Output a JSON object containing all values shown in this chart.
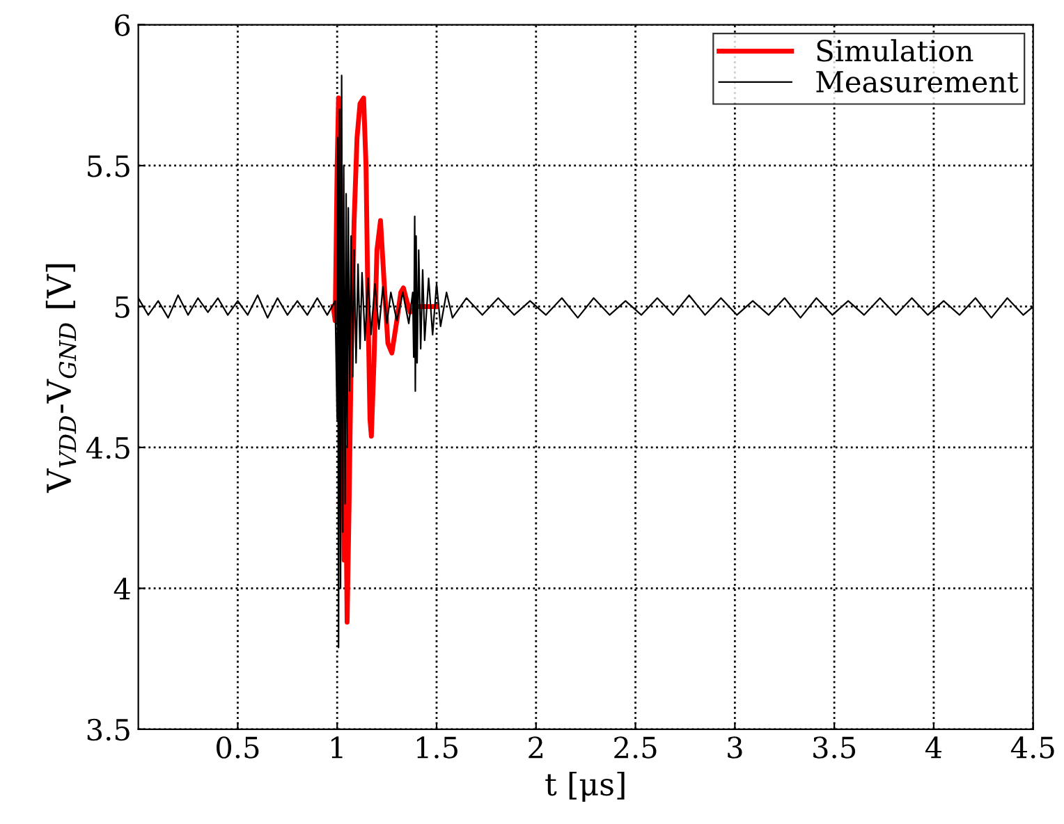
{
  "chart_data": {
    "type": "line",
    "xlabel": "t [μs]",
    "ylabel": "V$_{VDD}$-V$_{GND}$ [V]",
    "xlim": [
      0,
      4.5
    ],
    "xticks": [
      0.5,
      1,
      1.5,
      2,
      2.5,
      3,
      3.5,
      4,
      4.5
    ],
    "ylim": [
      3.5,
      6
    ],
    "yticks": [
      3.5,
      4,
      4.5,
      5,
      5.5,
      6
    ],
    "grid": true,
    "legend": "top right",
    "series": [
      {
        "name": "Simulation",
        "color": "#ff0000",
        "x": [
          0.98,
          0.99,
          1.0,
          1.007,
          1.015,
          1.025,
          1.035,
          1.042,
          1.05,
          1.06,
          1.07,
          1.085,
          1.1,
          1.115,
          1.133,
          1.145,
          1.155,
          1.165,
          1.172,
          1.185,
          1.2,
          1.218,
          1.235,
          1.255,
          1.275,
          1.3,
          1.32,
          1.333,
          1.35,
          1.367,
          1.4,
          1.5
        ],
        "values": [
          5.0,
          4.95,
          5.5,
          5.74,
          5.5,
          4.8,
          4.1,
          4.5,
          3.88,
          4.3,
          4.8,
          5.3,
          5.6,
          5.72,
          5.74,
          5.5,
          5.0,
          4.6,
          4.54,
          4.8,
          5.2,
          5.305,
          5.1,
          4.87,
          4.835,
          4.95,
          5.05,
          5.066,
          5.02,
          4.98,
          5.0,
          5.0
        ]
      },
      {
        "name": "Measurement",
        "color": "#000000",
        "x": [
          0,
          0.05,
          0.1,
          0.15,
          0.2,
          0.25,
          0.3,
          0.35,
          0.4,
          0.45,
          0.5,
          0.55,
          0.6,
          0.65,
          0.7,
          0.75,
          0.8,
          0.85,
          0.9,
          0.95,
          0.99,
          1.0,
          1.003,
          1.007,
          1.012,
          1.017,
          1.0225,
          1.028,
          1.033,
          1.04,
          1.045,
          1.05,
          1.056,
          1.062,
          1.07,
          1.078,
          1.085,
          1.095,
          1.105,
          1.115,
          1.125,
          1.14,
          1.155,
          1.17,
          1.19,
          1.21,
          1.23,
          1.25,
          1.27,
          1.3,
          1.33,
          1.36,
          1.38,
          1.385,
          1.39,
          1.393,
          1.397,
          1.402,
          1.41,
          1.42,
          1.43,
          1.44,
          1.46,
          1.48,
          1.5,
          1.52,
          1.55,
          1.58,
          1.65,
          1.73,
          1.81,
          1.89,
          1.97,
          2.05,
          2.13,
          2.21,
          2.29,
          2.37,
          2.45,
          2.53,
          2.61,
          2.69,
          2.77,
          2.85,
          2.93,
          3.01,
          3.09,
          3.17,
          3.25,
          3.33,
          3.41,
          3.49,
          3.57,
          3.65,
          3.73,
          3.81,
          3.89,
          3.97,
          4.05,
          4.13,
          4.21,
          4.29,
          4.37,
          4.45,
          4.5
        ],
        "values": [
          5.03,
          4.97,
          5.02,
          4.96,
          5.04,
          4.97,
          5.03,
          4.98,
          5.03,
          4.97,
          5.02,
          4.97,
          5.04,
          4.96,
          5.03,
          4.97,
          5.02,
          4.97,
          5.03,
          4.97,
          5.02,
          4.6,
          5.6,
          3.79,
          5.7,
          4.0,
          5.82,
          4.2,
          5.5,
          4.3,
          5.4,
          4.5,
          5.35,
          4.7,
          5.25,
          4.75,
          5.2,
          4.8,
          5.15,
          4.85,
          5.12,
          4.88,
          5.1,
          4.9,
          5.08,
          4.92,
          5.07,
          4.94,
          5.05,
          4.95,
          5.05,
          4.94,
          5.05,
          4.82,
          5.32,
          4.7,
          5.25,
          4.8,
          5.2,
          4.85,
          5.13,
          4.88,
          5.1,
          4.9,
          5.08,
          4.93,
          5.05,
          4.96,
          5.03,
          4.97,
          5.03,
          4.97,
          5.02,
          4.97,
          5.03,
          4.96,
          5.03,
          4.97,
          5.02,
          4.97,
          5.03,
          4.97,
          5.04,
          4.97,
          5.03,
          4.97,
          5.02,
          4.97,
          5.03,
          4.96,
          5.03,
          4.97,
          5.02,
          4.97,
          5.03,
          4.97,
          5.03,
          4.97,
          5.02,
          4.97,
          5.03,
          4.96,
          5.03,
          4.97,
          5.0
        ]
      }
    ]
  }
}
